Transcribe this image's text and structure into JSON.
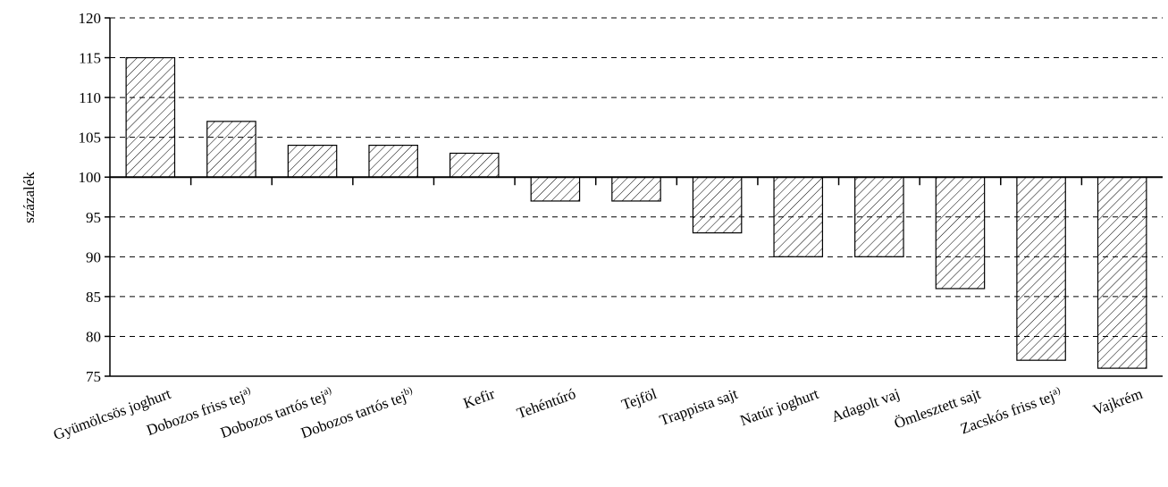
{
  "chart_data": {
    "type": "bar",
    "baseline": 100,
    "ylabel": "százalék",
    "ylim": [
      75,
      120
    ],
    "yticks": [
      75,
      80,
      85,
      90,
      95,
      100,
      105,
      110,
      115,
      120
    ],
    "grid": true,
    "categories": [
      {
        "name": "Gyümölcsös joghurt",
        "sup": ""
      },
      {
        "name": "Dobozos friss tej",
        "sup": "a)"
      },
      {
        "name": "Dobozos tartós tej",
        "sup": "a)"
      },
      {
        "name": "Dobozos tartós tej",
        "sup": "b)"
      },
      {
        "name": "Kefir",
        "sup": ""
      },
      {
        "name": "Tehéntúró",
        "sup": ""
      },
      {
        "name": "Tejföl",
        "sup": ""
      },
      {
        "name": "Trappista sajt",
        "sup": ""
      },
      {
        "name": "Natúr joghurt",
        "sup": ""
      },
      {
        "name": "Adagolt vaj",
        "sup": ""
      },
      {
        "name": "Ömlesztett sajt",
        "sup": ""
      },
      {
        "name": "Zacskós friss tej",
        "sup": "a)"
      },
      {
        "name": "Vajkrém",
        "sup": ""
      }
    ],
    "values": [
      115,
      107,
      104,
      104,
      103,
      97,
      97,
      93,
      90,
      90,
      86,
      77,
      76
    ],
    "colors": {
      "bar_fill": "#ffffff",
      "hatch": "#000000",
      "grid": "#000000"
    }
  }
}
